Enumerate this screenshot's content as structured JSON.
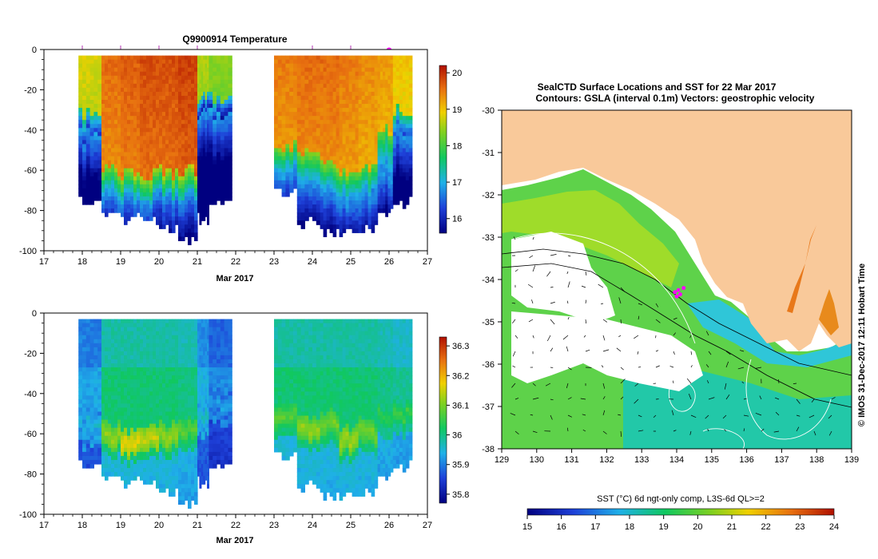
{
  "chart_data": [
    {
      "type": "heatmap",
      "title": "Q9900914  Temperature",
      "xlabel": "Mar 2017",
      "ylabel": "",
      "xlim": [
        17,
        27
      ],
      "ylim": [
        -100,
        0
      ],
      "x_ticks": [
        "17",
        "18",
        "19",
        "20",
        "21",
        "22",
        "23",
        "24",
        "25",
        "26",
        "27"
      ],
      "y_ticks": [
        "0",
        "-20",
        "-40",
        "-60",
        "-80",
        "-100"
      ],
      "colorbar": {
        "ticks": [
          "20",
          "19",
          "18",
          "17",
          "16"
        ],
        "min": 15.6,
        "max": 20.2
      },
      "markers": [
        18.0,
        19.0,
        20.0,
        21.0,
        24.0,
        25.0,
        26.0
      ],
      "highlight_marker": 26.0,
      "profiles": [
        {
          "x0": 17.9,
          "x1": 18.5,
          "warm": 0,
          "mix": 42,
          "bottom": 75,
          "surf": 18.8
        },
        {
          "x0": 18.5,
          "x1": 19.0,
          "warm": 58,
          "mix": 70,
          "bottom": 81,
          "surf": 19.6
        },
        {
          "x0": 19.0,
          "x1": 19.5,
          "warm": 62,
          "mix": 73,
          "bottom": 83,
          "surf": 19.7
        },
        {
          "x0": 19.5,
          "x1": 20.0,
          "warm": 61,
          "mix": 72,
          "bottom": 85,
          "surf": 19.8
        },
        {
          "x0": 20.0,
          "x1": 20.5,
          "warm": 60,
          "mix": 71,
          "bottom": 88,
          "surf": 19.8
        },
        {
          "x0": 20.5,
          "x1": 21.0,
          "warm": 58,
          "mix": 70,
          "bottom": 95,
          "surf": 19.9
        },
        {
          "x0": 21.0,
          "x1": 21.3,
          "warm": 0,
          "mix": 30,
          "bottom": 83,
          "surf": 18.6
        },
        {
          "x0": 21.3,
          "x1": 21.9,
          "warm": 0,
          "mix": 32,
          "bottom": 73,
          "surf": 18.4
        },
        {
          "x0": 23.0,
          "x1": 23.6,
          "warm": 48,
          "mix": 60,
          "bottom": 70,
          "surf": 19.5
        },
        {
          "x0": 23.6,
          "x1": 24.2,
          "warm": 52,
          "mix": 66,
          "bottom": 85,
          "surf": 19.6
        },
        {
          "x0": 24.2,
          "x1": 24.7,
          "warm": 55,
          "mix": 68,
          "bottom": 90,
          "surf": 19.6
        },
        {
          "x0": 24.7,
          "x1": 25.2,
          "warm": 60,
          "mix": 72,
          "bottom": 90,
          "surf": 19.5
        },
        {
          "x0": 25.2,
          "x1": 25.7,
          "warm": 57,
          "mix": 70,
          "bottom": 87,
          "surf": 19.4
        },
        {
          "x0": 25.7,
          "x1": 26.1,
          "warm": 40,
          "mix": 60,
          "bottom": 80,
          "surf": 19.3
        },
        {
          "x0": 26.1,
          "x1": 26.6,
          "warm": 0,
          "mix": 40,
          "bottom": 75,
          "surf": 19.0
        }
      ]
    },
    {
      "type": "heatmap",
      "title": "",
      "xlabel": "Mar 2017",
      "ylabel": "",
      "xlim": [
        17,
        27
      ],
      "ylim": [
        -100,
        0
      ],
      "x_ticks": [
        "17",
        "18",
        "19",
        "20",
        "21",
        "22",
        "23",
        "24",
        "25",
        "26",
        "27"
      ],
      "y_ticks": [
        "0",
        "-20",
        "-40",
        "-60",
        "-80",
        "-100"
      ],
      "colorbar": {
        "ticks": [
          "36.3",
          "36.2",
          "36.1",
          "36",
          "35.9",
          "35.8"
        ],
        "min": 35.77,
        "max": 36.33
      },
      "profiles": [
        {
          "x0": 17.9,
          "x1": 18.5,
          "mid": 35.92,
          "peak": 35.96,
          "peakDepth": 55,
          "bottom": 75
        },
        {
          "x0": 18.5,
          "x1": 19.0,
          "mid": 36.0,
          "peak": 36.12,
          "peakDepth": 60,
          "bottom": 81
        },
        {
          "x0": 19.0,
          "x1": 19.5,
          "mid": 36.0,
          "peak": 36.17,
          "peakDepth": 63,
          "bottom": 83
        },
        {
          "x0": 19.5,
          "x1": 20.0,
          "mid": 36.0,
          "peak": 36.15,
          "peakDepth": 62,
          "bottom": 85
        },
        {
          "x0": 20.0,
          "x1": 20.5,
          "mid": 36.0,
          "peak": 36.12,
          "peakDepth": 60,
          "bottom": 88
        },
        {
          "x0": 20.5,
          "x1": 21.0,
          "mid": 35.99,
          "peak": 36.08,
          "peakDepth": 56,
          "bottom": 95
        },
        {
          "x0": 21.0,
          "x1": 21.3,
          "mid": 35.93,
          "peak": 35.97,
          "peakDepth": 50,
          "bottom": 83
        },
        {
          "x0": 21.3,
          "x1": 21.9,
          "mid": 35.9,
          "peak": 35.93,
          "peakDepth": 45,
          "bottom": 73
        },
        {
          "x0": 23.0,
          "x1": 23.6,
          "mid": 36.0,
          "peak": 36.08,
          "peakDepth": 52,
          "bottom": 70
        },
        {
          "x0": 23.6,
          "x1": 24.2,
          "mid": 36.0,
          "peak": 36.12,
          "peakDepth": 58,
          "bottom": 85
        },
        {
          "x0": 24.2,
          "x1": 24.7,
          "mid": 36.0,
          "peak": 36.1,
          "peakDepth": 55,
          "bottom": 90
        },
        {
          "x0": 24.7,
          "x1": 25.2,
          "mid": 36.0,
          "peak": 36.13,
          "peakDepth": 63,
          "bottom": 90
        },
        {
          "x0": 25.2,
          "x1": 25.7,
          "mid": 36.0,
          "peak": 36.1,
          "peakDepth": 58,
          "bottom": 87
        },
        {
          "x0": 25.7,
          "x1": 26.1,
          "mid": 35.99,
          "peak": 36.05,
          "peakDepth": 50,
          "bottom": 80
        },
        {
          "x0": 26.1,
          "x1": 26.6,
          "mid": 35.98,
          "peak": 36.06,
          "peakDepth": 50,
          "bottom": 75
        }
      ]
    },
    {
      "type": "map",
      "title": "SealCTD Surface Locations and SST for 22 Mar 2017",
      "subtitle": "Contours: GSLA (interval 0.1m) Vectors: geostrophic velocity",
      "xlim": [
        129,
        139
      ],
      "ylim": [
        -38,
        -30
      ],
      "x_ticks": [
        "129",
        "130",
        "131",
        "132",
        "133",
        "134",
        "135",
        "136",
        "137",
        "138",
        "139"
      ],
      "y_ticks": [
        "-30",
        "-31",
        "-32",
        "-33",
        "-34",
        "-35",
        "-36",
        "-37",
        "-38"
      ],
      "colorbar_label": "SST (°C) 6d ngt-only comp, L3S-6d QL>=2",
      "colorbar_ticks": [
        "15",
        "16",
        "17",
        "18",
        "19",
        "20",
        "21",
        "22",
        "23",
        "24"
      ],
      "colorbar_range": [
        15,
        24
      ],
      "side_label": "© IMOS 31-Dec-2017 12:11 Hobart Time",
      "seal_points": [
        [
          133.95,
          -34.3
        ],
        [
          134.05,
          -34.25
        ],
        [
          134.1,
          -34.35
        ],
        [
          134.2,
          -34.2
        ],
        [
          134.0,
          -34.4
        ]
      ]
    }
  ]
}
